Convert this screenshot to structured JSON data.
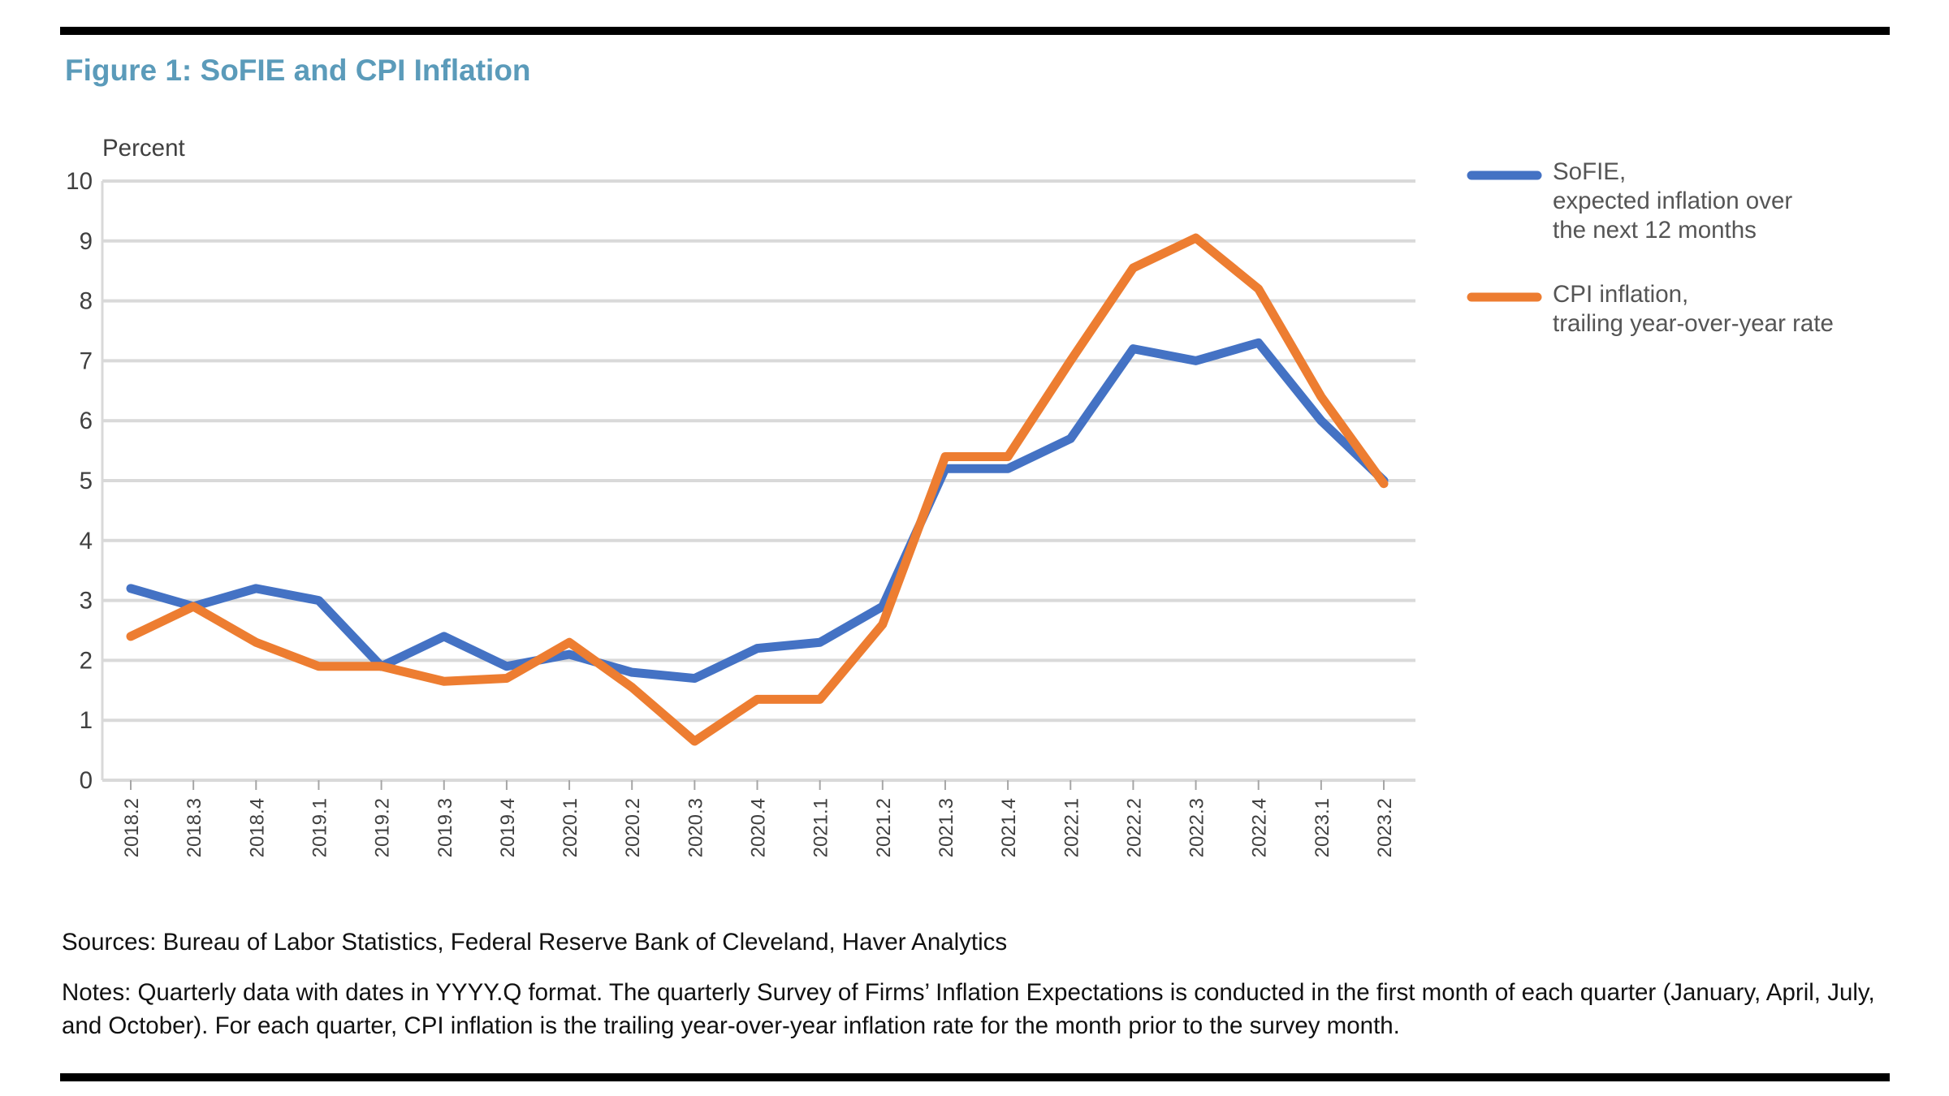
{
  "title": "Figure 1: SoFIE and CPI Inflation",
  "sources": "Sources: Bureau of Labor Statistics, Federal Reserve Bank of Cleveland, Haver Analytics",
  "notes": "Notes: Quarterly data with dates in YYYY.Q format. The quarterly Survey of Firms’ Inflation Expectations is conducted in the first month of each quarter (January, April, July, and October). For each quarter, CPI inflation is the trailing year-over-year inflation rate for the month prior to the survey month.",
  "chart_data": {
    "type": "line",
    "ylabel": "Percent",
    "ylim": [
      0,
      10
    ],
    "yticks": [
      0,
      1,
      2,
      3,
      4,
      5,
      6,
      7,
      8,
      9,
      10
    ],
    "grid": true,
    "legend_position": "right",
    "categories": [
      "2018.2",
      "2018.3",
      "2018.4",
      "2019.1",
      "2019.2",
      "2019.3",
      "2019.4",
      "2020.1",
      "2020.2",
      "2020.3",
      "2020.4",
      "2021.1",
      "2021.2",
      "2021.3",
      "2021.4",
      "2022.1",
      "2022.2",
      "2022.3",
      "2022.4",
      "2023.1",
      "2023.2"
    ],
    "series": [
      {
        "name": "SoFIE,\nexpected inflation over\nthe next 12 months",
        "lines": [
          "SoFIE,",
          "expected inflation over",
          "the next 12 months"
        ],
        "color": "#4472c4",
        "values": [
          3.2,
          2.9,
          3.2,
          3.0,
          1.9,
          2.4,
          1.9,
          2.1,
          1.8,
          1.7,
          2.2,
          2.3,
          2.9,
          5.2,
          5.2,
          5.7,
          7.2,
          7.0,
          7.3,
          6.0,
          5.0
        ]
      },
      {
        "name": "CPI inflation,\ntrailing year-over-year rate",
        "lines": [
          "CPI inflation,",
          "trailing year-over-year rate"
        ],
        "color": "#ed7d31",
        "values": [
          2.4,
          2.9,
          2.3,
          1.9,
          1.9,
          1.65,
          1.7,
          2.3,
          1.55,
          0.65,
          1.35,
          1.35,
          2.6,
          5.4,
          5.4,
          7.0,
          8.55,
          9.05,
          8.2,
          6.4,
          4.95
        ]
      }
    ]
  }
}
